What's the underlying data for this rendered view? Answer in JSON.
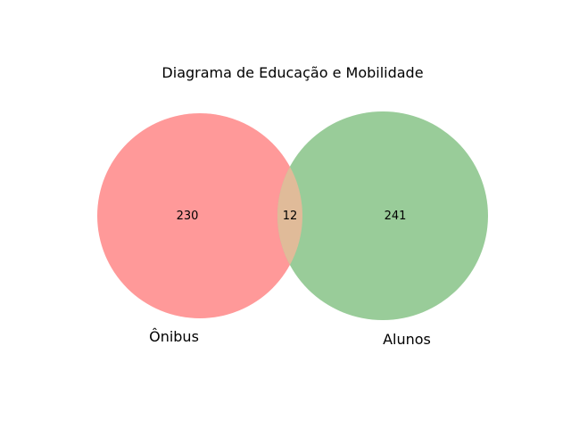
{
  "diagram": {
    "title": "Diagrama de Educação e Mobilidade",
    "type": "venn2",
    "sets": [
      {
        "label": "Ônibus",
        "only_count": "230",
        "color": "#ff9999"
      },
      {
        "label": "Alunos",
        "only_count": "241",
        "color": "#99cc99"
      }
    ],
    "intersection": {
      "count": "12",
      "color": "#e0bb99"
    },
    "background_color": "#ffffff"
  }
}
